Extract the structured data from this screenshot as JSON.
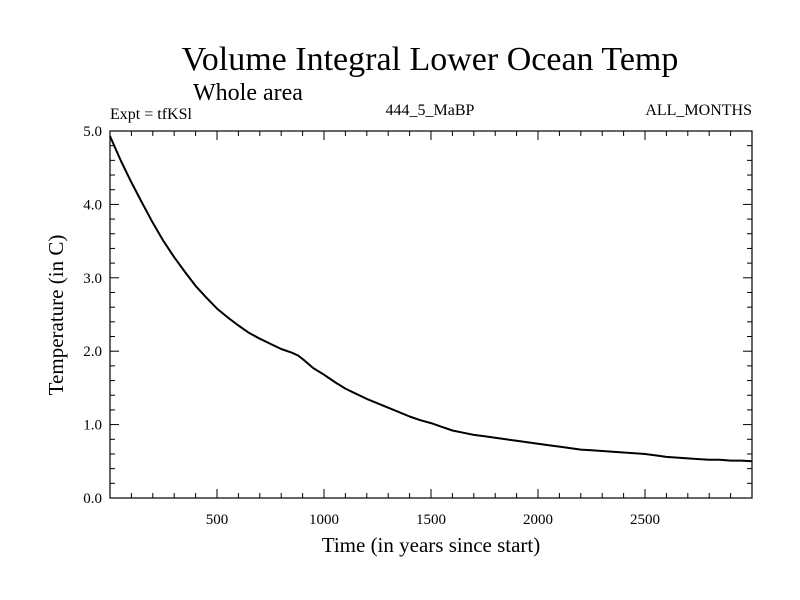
{
  "chart_data": {
    "type": "line",
    "title": "Volume Integral Lower Ocean Temp",
    "subtitle": "Whole area",
    "expt_label": "Expt = tfKSl",
    "center_label": "444_5_MaBP",
    "right_label": "ALL_MONTHS",
    "xlabel": "Time (in years since start)",
    "ylabel": "Temperature (in C)",
    "xlim": [
      0,
      3000
    ],
    "ylim": [
      0,
      5.0
    ],
    "xticks_major": [
      500,
      1000,
      1500,
      2000,
      2500
    ],
    "xtick_labels": [
      "500",
      "1000",
      "1500",
      "2000",
      "2500"
    ],
    "xticks_minor_step": 100,
    "yticks_major": [
      0.0,
      1.0,
      2.0,
      3.0,
      4.0,
      5.0
    ],
    "ytick_labels": [
      "0.0",
      "1.0",
      "2.0",
      "3.0",
      "4.0",
      "5.0"
    ],
    "yticks_minor_step": 0.2,
    "series": [
      {
        "name": "Temperature",
        "color": "#000000",
        "x": [
          0,
          50,
          100,
          150,
          200,
          250,
          300,
          350,
          400,
          450,
          500,
          550,
          600,
          650,
          700,
          750,
          800,
          850,
          880,
          910,
          950,
          1000,
          1050,
          1100,
          1150,
          1200,
          1250,
          1300,
          1350,
          1400,
          1450,
          1500,
          1550,
          1600,
          1650,
          1700,
          1750,
          1800,
          1850,
          1900,
          1950,
          2000,
          2050,
          2100,
          2150,
          2200,
          2250,
          2300,
          2350,
          2400,
          2450,
          2500,
          2550,
          2600,
          2650,
          2700,
          2750,
          2800,
          2850,
          2900,
          2950,
          3000
        ],
        "y": [
          4.93,
          4.6,
          4.3,
          4.02,
          3.75,
          3.5,
          3.28,
          3.08,
          2.89,
          2.73,
          2.58,
          2.46,
          2.35,
          2.25,
          2.17,
          2.1,
          2.03,
          1.98,
          1.94,
          1.87,
          1.77,
          1.68,
          1.58,
          1.49,
          1.42,
          1.35,
          1.29,
          1.23,
          1.17,
          1.11,
          1.06,
          1.02,
          0.97,
          0.92,
          0.89,
          0.86,
          0.84,
          0.82,
          0.8,
          0.78,
          0.76,
          0.74,
          0.72,
          0.7,
          0.68,
          0.66,
          0.65,
          0.64,
          0.63,
          0.62,
          0.61,
          0.6,
          0.58,
          0.56,
          0.55,
          0.54,
          0.53,
          0.52,
          0.52,
          0.51,
          0.51,
          0.5
        ]
      }
    ]
  }
}
